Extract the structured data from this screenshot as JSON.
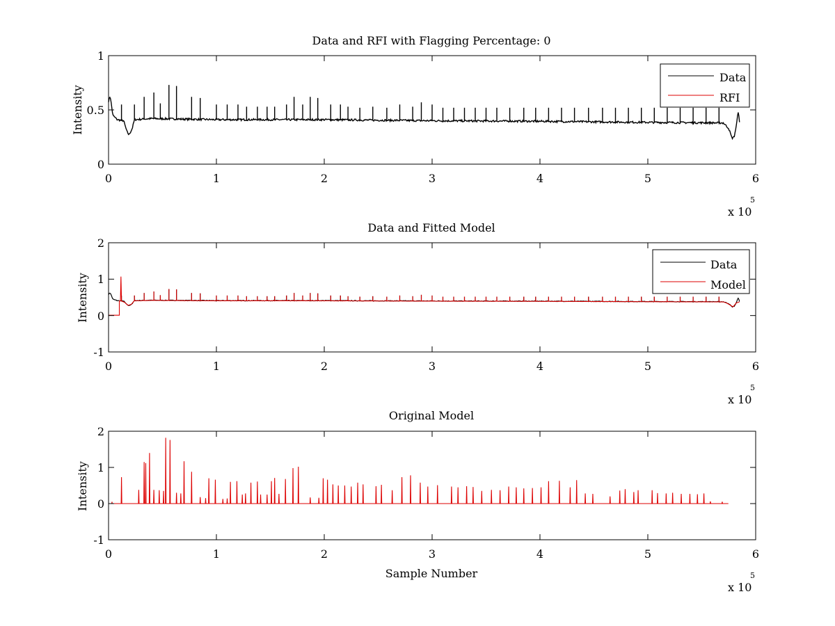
{
  "chart_data": [
    {
      "type": "line",
      "title": "Data and RFI with Flagging Percentage: 0",
      "xlabel": "",
      "ylabel": "Intensity",
      "xlim": [
        0,
        600000
      ],
      "ylim": [
        0,
        1
      ],
      "xticks": [
        0,
        1,
        2,
        3,
        4,
        5,
        6
      ],
      "yticks": [
        "0",
        "0.5",
        "1"
      ],
      "x_exponent": {
        "base": "x 10",
        "power": "5"
      },
      "grid": false,
      "legend_position": "top-right",
      "series": [
        {
          "name": "Data",
          "color": "#000000",
          "description_points": [
            [
              0,
              0.58
            ],
            [
              1500,
              0.63
            ],
            [
              4000,
              0.45
            ],
            [
              8000,
              0.41
            ],
            [
              14000,
              0.4
            ],
            [
              17000,
              0.3
            ],
            [
              19000,
              0.27
            ],
            [
              22000,
              0.33
            ],
            [
              24000,
              0.41
            ],
            [
              40000,
              0.42
            ],
            [
              100000,
              0.41
            ],
            [
              200000,
              0.41
            ],
            [
              300000,
              0.4
            ],
            [
              400000,
              0.395
            ],
            [
              500000,
              0.385
            ],
            [
              570000,
              0.38
            ],
            [
              575000,
              0.33
            ],
            [
              578000,
              0.24
            ],
            [
              580000,
              0.25
            ],
            [
              582000,
              0.35
            ],
            [
              584000,
              0.5
            ],
            [
              585000,
              0.38
            ]
          ],
          "spikes_x": [
            12000,
            24000,
            33000,
            42000,
            48000,
            56000,
            63000,
            77000,
            85000,
            100000,
            110000,
            120000,
            128000,
            138000,
            147000,
            154000,
            165000,
            172000,
            180000,
            187000,
            194000,
            206000,
            215000,
            222000,
            233000,
            245000,
            258000,
            270000,
            282000,
            290000,
            300000,
            310000,
            320000,
            330000,
            340000,
            350000,
            360000,
            372000,
            385000,
            396000,
            408000,
            420000,
            432000,
            445000,
            458000,
            470000,
            482000,
            494000,
            506000,
            518000,
            530000,
            542000,
            554000,
            566000
          ],
          "spikes_y": [
            0.55,
            0.55,
            0.62,
            0.66,
            0.56,
            0.73,
            0.72,
            0.62,
            0.61,
            0.55,
            0.55,
            0.55,
            0.53,
            0.53,
            0.53,
            0.53,
            0.55,
            0.62,
            0.55,
            0.62,
            0.61,
            0.55,
            0.55,
            0.53,
            0.52,
            0.53,
            0.52,
            0.55,
            0.53,
            0.57,
            0.55,
            0.52,
            0.52,
            0.52,
            0.52,
            0.52,
            0.52,
            0.52,
            0.52,
            0.52,
            0.52,
            0.52,
            0.52,
            0.52,
            0.52,
            0.52,
            0.52,
            0.52,
            0.52,
            0.52,
            0.52,
            0.52,
            0.52,
            0.52
          ]
        },
        {
          "name": "RFI",
          "color": "#dd0000"
        }
      ]
    },
    {
      "type": "line",
      "title": "Data and Fitted Model",
      "xlabel": "",
      "ylabel": "Intensity",
      "xlim": [
        0,
        600000
      ],
      "ylim": [
        -1,
        2
      ],
      "xticks": [
        0,
        1,
        2,
        3,
        4,
        5,
        6
      ],
      "yticks": [
        "-1",
        "0",
        "1",
        "2"
      ],
      "x_exponent": {
        "base": "x 10",
        "power": "5"
      },
      "grid": false,
      "legend_position": "top-right",
      "series": [
        {
          "name": "Data",
          "color": "#000000"
        },
        {
          "name": "Model",
          "color": "#dd0000"
        }
      ]
    },
    {
      "type": "line",
      "title": "Original Model",
      "xlabel": "Sample Number",
      "ylabel": "Intensity",
      "xlim": [
        0,
        600000
      ],
      "ylim": [
        -1,
        2
      ],
      "xticks": [
        0,
        1,
        2,
        3,
        4,
        5,
        6
      ],
      "yticks": [
        "-1",
        "0",
        "1",
        "2"
      ],
      "x_exponent": {
        "base": "x 10",
        "power": "5"
      },
      "grid": false,
      "series": [
        {
          "name": "",
          "color": "#dd0000",
          "spikes_x": [
            12000,
            28000,
            33000,
            34500,
            38000,
            42000,
            47000,
            51000,
            53000,
            57000,
            63000,
            67000,
            70000,
            77000,
            85000,
            90000,
            93000,
            99000,
            106000,
            110000,
            113000,
            119000,
            124000,
            127000,
            132000,
            138000,
            141000,
            147000,
            151000,
            154000,
            158000,
            164000,
            171000,
            176000,
            187000,
            195000,
            199000,
            203000,
            208000,
            213000,
            219000,
            225000,
            231000,
            236000,
            248000,
            253000,
            263000,
            272000,
            280000,
            289000,
            296000,
            305000,
            318000,
            324000,
            332000,
            338000,
            346000,
            355000,
            363000,
            371000,
            378000,
            385000,
            393000,
            401000,
            408000,
            418000,
            428000,
            434000,
            442000,
            449000,
            465000,
            474000,
            479000,
            487000,
            491000,
            504000,
            509000,
            517000,
            523000,
            531000,
            539000,
            546000,
            552000,
            558000,
            569000,
            575000
          ],
          "spikes_y": [
            0.73,
            0.38,
            1.15,
            1.12,
            1.4,
            0.38,
            0.37,
            0.35,
            1.82,
            1.76,
            0.3,
            0.28,
            1.17,
            0.88,
            0.18,
            0.15,
            0.7,
            0.66,
            0.13,
            0.14,
            0.6,
            0.62,
            0.25,
            0.28,
            0.58,
            0.61,
            0.25,
            0.25,
            0.62,
            0.71,
            0.27,
            0.68,
            0.98,
            1.02,
            0.17,
            0.16,
            0.7,
            0.66,
            0.53,
            0.5,
            0.5,
            0.47,
            0.58,
            0.53,
            0.48,
            0.52,
            0.37,
            0.73,
            0.78,
            0.58,
            0.47,
            0.51,
            0.47,
            0.45,
            0.48,
            0.46,
            0.35,
            0.38,
            0.37,
            0.47,
            0.45,
            0.42,
            0.43,
            0.45,
            0.62,
            0.63,
            0.45,
            0.65,
            0.28,
            0.27,
            0.2,
            0.36,
            0.4,
            0.32,
            0.37,
            0.37,
            0.29,
            0.28,
            0.3,
            0.27,
            0.27,
            0.26,
            0.28,
            0.06,
            0.05
          ]
        }
      ]
    }
  ]
}
